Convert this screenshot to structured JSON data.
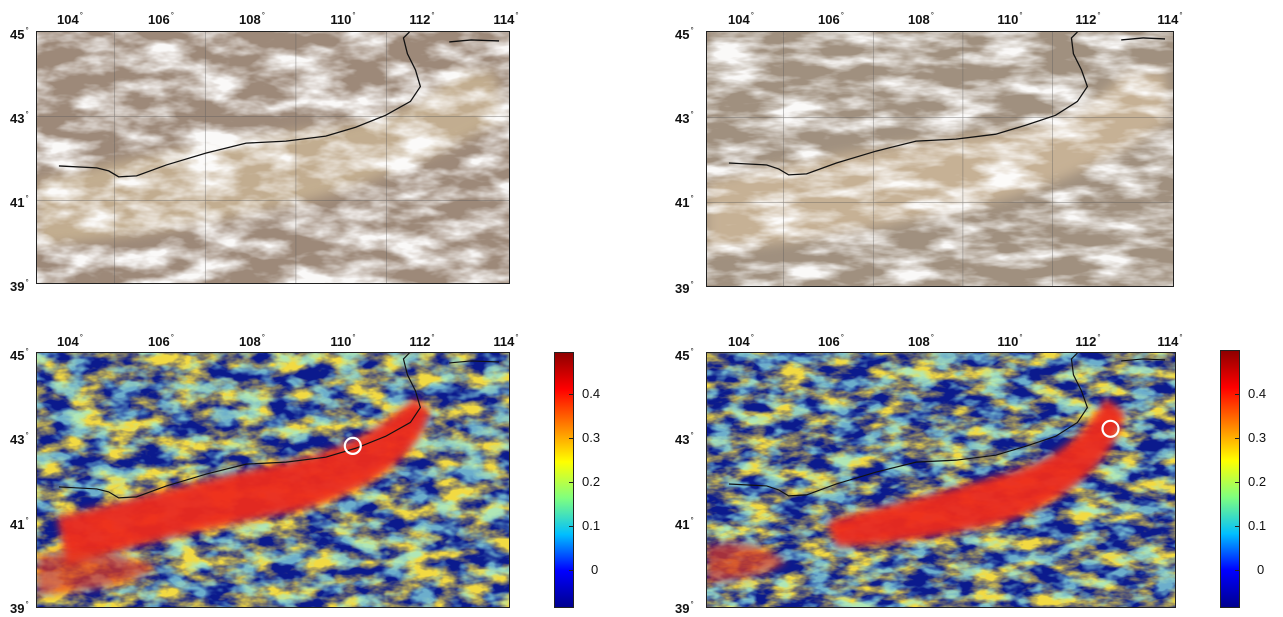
{
  "longitude_ticks": [
    "104",
    "106",
    "108",
    "110",
    "112",
    "114"
  ],
  "latitude_ticks": [
    "45",
    "43",
    "41",
    "39"
  ],
  "degree_symbol": "°",
  "colorbar": {
    "ticks": [
      "0.4",
      "0.3",
      "0.2",
      "0.1",
      "0"
    ],
    "range": [
      -0.08,
      0.5
    ],
    "colormap": [
      "#00008f",
      "#0000ff",
      "#00bfff",
      "#7fff7f",
      "#ffff00",
      "#ff7f00",
      "#ff0000",
      "#8f0000"
    ]
  },
  "panels": [
    {
      "id": "top-left",
      "type": "true-color satellite image"
    },
    {
      "id": "top-right",
      "type": "true-color satellite image"
    },
    {
      "id": "bottom-left",
      "type": "index map",
      "marker": {
        "lon": 110.0,
        "lat": 42.8
      }
    },
    {
      "id": "bottom-right",
      "type": "index map",
      "marker": {
        "lon": 112.0,
        "lat": 43.2
      }
    }
  ],
  "colors": {
    "land": "#9c8a78",
    "dust": "#c8b295",
    "cloud": "#f4f4f6",
    "boundary": "#101010",
    "low_value": "#0a1a8c"
  }
}
